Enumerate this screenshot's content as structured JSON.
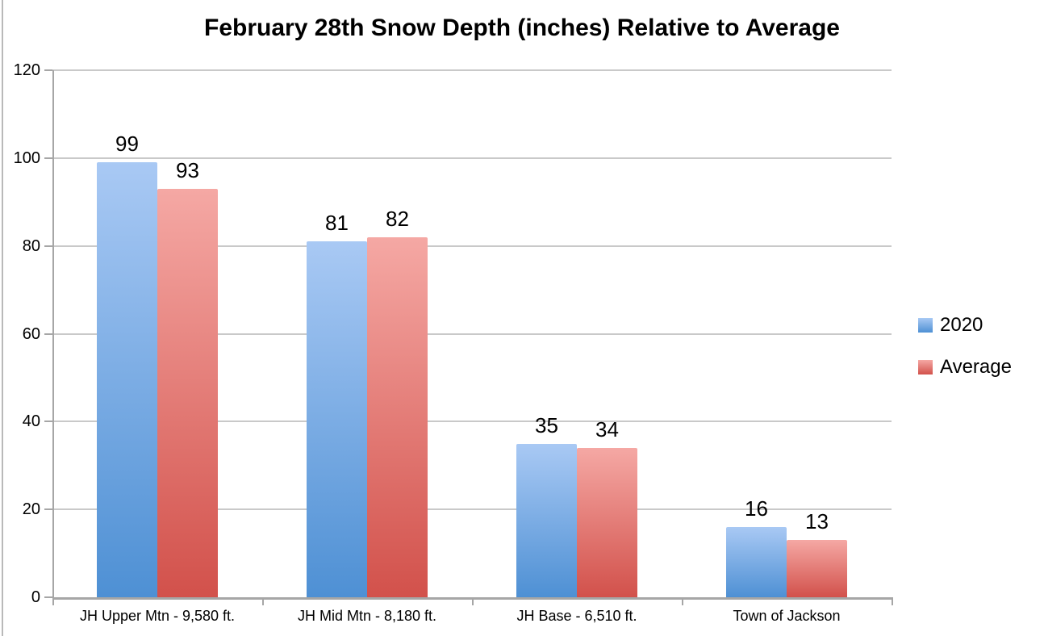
{
  "window": {
    "background": "#ffffff",
    "left_border_color": "#b9b9b9"
  },
  "chart_data": {
    "type": "bar",
    "title": "February 28th Snow Depth (inches) Relative to Average",
    "categories": [
      "JH Upper Mtn - 9,580 ft.",
      "JH Mid Mtn - 8,180 ft.",
      "JH Base - 6,510 ft.",
      "Town of Jackson"
    ],
    "series": [
      {
        "name": "2020",
        "values": [
          99,
          81,
          35,
          16
        ],
        "color_top": "#a9c9f4",
        "color_bottom": "#4e90d4"
      },
      {
        "name": "Average",
        "values": [
          93,
          82,
          34,
          13
        ],
        "color_top": "#f5a8a4",
        "color_bottom": "#d2514b"
      }
    ],
    "xlabel": "",
    "ylabel": "",
    "ylim": [
      0,
      120
    ],
    "yticks": [
      0,
      20,
      40,
      60,
      80,
      100,
      120
    ],
    "grid": true,
    "data_labels": true,
    "legend_position": "right",
    "colors": {
      "gridline": "#c9c9c9",
      "axis": "#a6a6a6",
      "text": "#000000"
    }
  }
}
